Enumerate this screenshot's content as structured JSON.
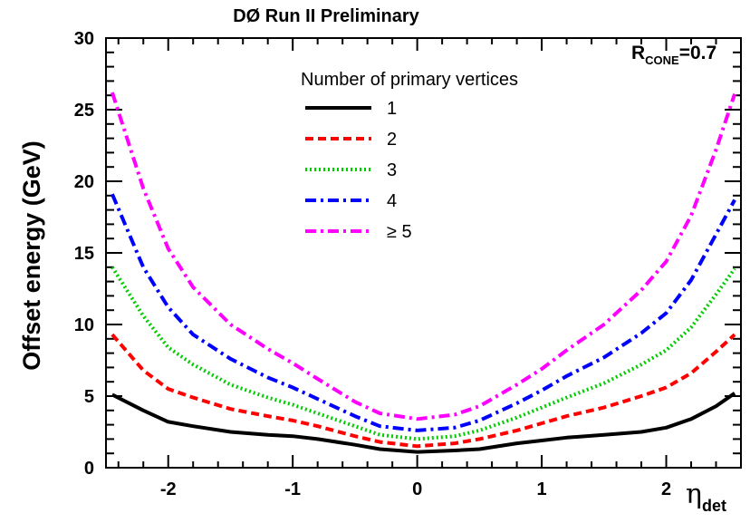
{
  "chart_data": {
    "type": "line",
    "title": "DØ Run II Preliminary",
    "annotation": {
      "main": "R",
      "sub": "CONE",
      "suffix": "=0.7"
    },
    "xlabel": {
      "main": "η",
      "sub": "det"
    },
    "ylabel": "Offset energy (GeV)",
    "xlim": [
      -2.5,
      2.6
    ],
    "ylim": [
      0,
      30
    ],
    "xticks": [
      -2,
      -1,
      0,
      1,
      2
    ],
    "xtick_labels": [
      "-2",
      "-1",
      "0",
      "1",
      "2"
    ],
    "yticks": [
      0,
      5,
      10,
      15,
      20,
      25,
      30
    ],
    "ytick_labels": [
      "0",
      "5",
      "10",
      "15",
      "20",
      "25",
      "30"
    ],
    "grid": false,
    "legend": {
      "title": "Number of primary vertices",
      "position": "top-center"
    },
    "x": [
      -2.45,
      -2.2,
      -2.0,
      -1.8,
      -1.5,
      -1.2,
      -1.0,
      -0.8,
      -0.5,
      -0.3,
      0.0,
      0.3,
      0.5,
      0.8,
      1.0,
      1.2,
      1.5,
      1.8,
      2.0,
      2.2,
      2.4,
      2.55
    ],
    "series": [
      {
        "name": "1",
        "color": "#000000",
        "dash": "solid",
        "values": [
          5.1,
          4.0,
          3.2,
          2.9,
          2.5,
          2.3,
          2.2,
          2.0,
          1.6,
          1.3,
          1.1,
          1.2,
          1.3,
          1.7,
          1.9,
          2.1,
          2.3,
          2.5,
          2.8,
          3.4,
          4.3,
          5.2
        ]
      },
      {
        "name": "2",
        "color": "#ff0000",
        "dash": "dashed",
        "values": [
          9.3,
          6.8,
          5.5,
          4.9,
          4.1,
          3.6,
          3.3,
          2.9,
          2.2,
          1.8,
          1.5,
          1.7,
          2.0,
          2.6,
          3.1,
          3.6,
          4.2,
          5.0,
          5.6,
          6.6,
          8.1,
          9.3
        ]
      },
      {
        "name": "3",
        "color": "#00cc00",
        "dash": "dotted",
        "values": [
          14.0,
          10.6,
          8.4,
          7.2,
          5.8,
          4.9,
          4.4,
          3.8,
          2.9,
          2.3,
          2.0,
          2.2,
          2.6,
          3.5,
          4.2,
          4.9,
          5.9,
          7.2,
          8.2,
          9.8,
          12.1,
          13.9
        ]
      },
      {
        "name": "4",
        "color": "#0000ff",
        "dash": "dashdot",
        "values": [
          19.1,
          14.0,
          11.2,
          9.3,
          7.6,
          6.3,
          5.6,
          4.8,
          3.6,
          2.9,
          2.6,
          2.8,
          3.3,
          4.5,
          5.4,
          6.4,
          7.7,
          9.4,
          10.8,
          13.1,
          16.3,
          18.7
        ]
      },
      {
        "name": "≥ 5",
        "color": "#ff00ff",
        "dash": "dashdot",
        "values": [
          26.2,
          19.5,
          15.3,
          12.6,
          10.0,
          8.3,
          7.3,
          6.2,
          4.6,
          3.8,
          3.4,
          3.7,
          4.3,
          5.8,
          6.9,
          8.2,
          10.0,
          12.4,
          14.4,
          17.6,
          22.2,
          26.1
        ]
      }
    ]
  }
}
